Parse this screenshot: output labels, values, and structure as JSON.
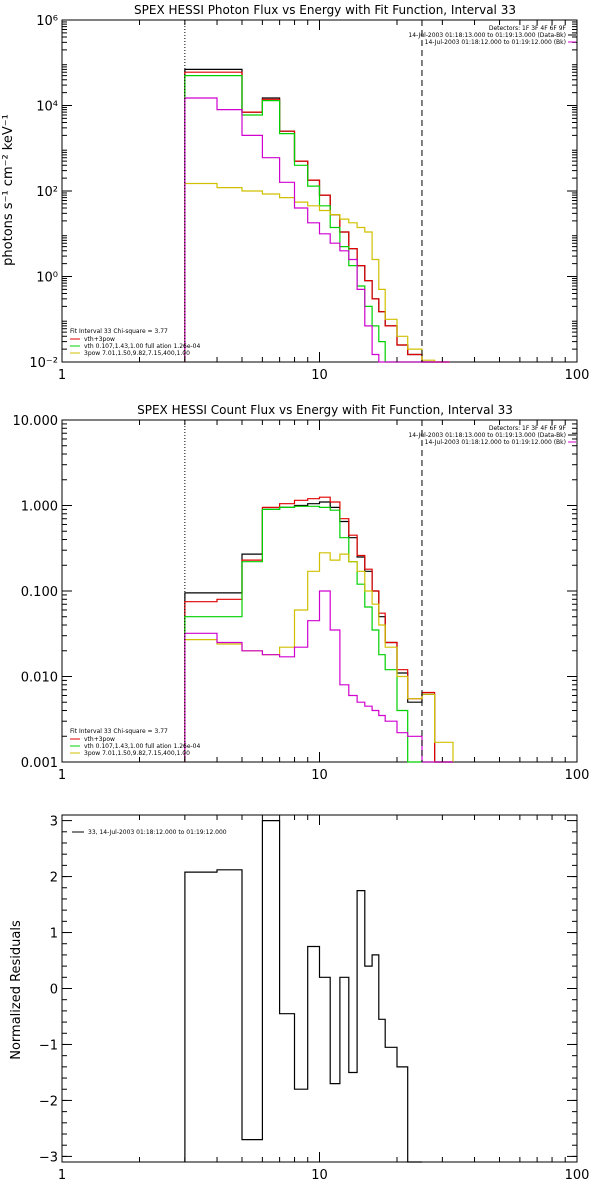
{
  "chart_data": [
    {
      "id": "photon",
      "type": "line",
      "title": "SPEX HESSI Photon Flux vs Energy with Fit Function, Interval 33",
      "xlabel": "",
      "ylabel": "photons s⁻¹ cm⁻² keV⁻¹",
      "xscale": "log",
      "yscale": "log",
      "xlim": [
        1,
        100
      ],
      "ylim": [
        0.01,
        1000000
      ],
      "xticks": [
        1,
        10,
        100
      ],
      "xticklabels": [
        "1",
        "10",
        "100"
      ],
      "yticks": [
        0.01,
        1,
        100,
        10000,
        1000000
      ],
      "yticklabels": [
        "10⁻²",
        "10⁰",
        "10²",
        "10⁴",
        "10⁶"
      ],
      "vlines": [
        {
          "x": 3,
          "style": "dotted"
        },
        {
          "x": 25,
          "style": "dashed"
        }
      ],
      "header_lines": [
        "Detectors: 1F 3F 4F 6F 9F",
        "14-Jul-2003 01:18:13.000 to 01:19:13.000 (Data-Bk)",
        "14-Jul-2003 01:18:12.000 to 01:19:12.000 (Bk)"
      ],
      "header_colors": [
        "",
        "#000000",
        "#d000d0"
      ],
      "legend_lines": [
        "Fit Interval 33   Chi-square = 3.77",
        "vth+3pow",
        "vth 0.107,1.43,1.00  full ation 1.26e-04",
        "3pow 7.01,1.50,9.82,7.15,400,1.00"
      ],
      "legend_colors": [
        "",
        "#e00000",
        "#00d000",
        "#d0c000"
      ],
      "edges": [
        3,
        4,
        5,
        6,
        7,
        8,
        9,
        10,
        11,
        12,
        13,
        14,
        15,
        16,
        17,
        18,
        20,
        22,
        25,
        28,
        32
      ],
      "series": [
        {
          "color": "#000000",
          "values": [
            70000,
            70000,
            7000,
            15000,
            2500,
            500,
            180,
            80,
            28,
            11,
            4.5,
            1.8,
            0.8,
            0.3,
            0.15,
            0.07,
            0.025,
            0.015,
            0.01,
            0.01
          ]
        },
        {
          "color": "#e00000",
          "values": [
            60000,
            60000,
            7000,
            14000,
            2500,
            500,
            180,
            80,
            28,
            11,
            4.5,
            1.8,
            0.8,
            0.3,
            0.15,
            0.07,
            0.025,
            0.015,
            0.01,
            0.01
          ]
        },
        {
          "color": "#00d000",
          "values": [
            50000,
            50000,
            6000,
            13000,
            2200,
            400,
            130,
            45,
            14,
            5,
            1.8,
            0.6,
            0.2,
            0.07,
            0.03,
            0.01,
            0.01,
            0.01,
            0.01,
            0.01
          ]
        },
        {
          "color": "#d0c000",
          "values": [
            150,
            120,
            100,
            85,
            70,
            55,
            45,
            35,
            28,
            22,
            18,
            14,
            11,
            2.5,
            0.5,
            0.1,
            0.04,
            0.02,
            0.011,
            0.01
          ]
        },
        {
          "color": "#d000d0",
          "values": [
            15000,
            8000,
            2000,
            600,
            160,
            40,
            18,
            10,
            6,
            4,
            2.5,
            0.5,
            0.07,
            0.015,
            0.01,
            0.01,
            0.01,
            0.01,
            0.01,
            0.01
          ]
        }
      ]
    },
    {
      "id": "count",
      "type": "line",
      "title": "SPEX HESSI Count Flux vs Energy with Fit Function, Interval 33",
      "xlabel": "",
      "ylabel": "",
      "xscale": "log",
      "yscale": "log",
      "xlim": [
        1,
        100
      ],
      "ylim": [
        0.001,
        10
      ],
      "xticks": [
        1,
        10,
        100
      ],
      "xticklabels": [
        "1",
        "10",
        "100"
      ],
      "yticks": [
        0.001,
        0.01,
        0.1,
        1,
        10
      ],
      "yticklabels": [
        "0.001",
        "0.010",
        "0.100",
        "1.000",
        "10.000"
      ],
      "vlines": [
        {
          "x": 3,
          "style": "dotted"
        },
        {
          "x": 25,
          "style": "dashed"
        }
      ],
      "header_lines": [
        "Detectors: 1F 3F 4F 6F 9F",
        "14-Jul-2003 01:18:13.000 to 01:19:13.000 (Data-Bk)",
        "14-Jul-2003 01:18:12.000 to 01:19:12.000 (Bk)"
      ],
      "header_colors": [
        "",
        "#000000",
        "#d000d0"
      ],
      "legend_lines": [
        "Fit Interval 33   Chi-square = 3.77",
        "vth+3pow",
        "vth 0.107,1.43,1.00  full ation 1.26e-04",
        "3pow 7.01,1.50,9.82,7.15,400,1.00"
      ],
      "legend_colors": [
        "",
        "#e00000",
        "#00d000",
        "#d0c000"
      ],
      "edges": [
        3,
        4,
        5,
        6,
        7,
        8,
        9,
        10,
        11,
        12,
        13,
        14,
        15,
        16,
        17,
        18,
        20,
        22,
        25,
        28,
        33
      ],
      "series": [
        {
          "color": "#000000",
          "values": [
            0.095,
            0.095,
            0.27,
            0.9,
            0.95,
            1.0,
            1.05,
            1.1,
            0.95,
            0.65,
            0.42,
            0.25,
            0.17,
            0.1,
            0.05,
            0.025,
            0.011,
            0.005,
            0.0062,
            0.001
          ]
        },
        {
          "color": "#e00000",
          "values": [
            0.075,
            0.08,
            0.23,
            0.95,
            1.05,
            1.15,
            1.2,
            1.25,
            1.1,
            0.7,
            0.45,
            0.26,
            0.18,
            0.1,
            0.055,
            0.025,
            0.012,
            0.0055,
            0.0065,
            0.001
          ]
        },
        {
          "color": "#00d000",
          "values": [
            0.05,
            0.05,
            0.22,
            0.9,
            0.95,
            0.98,
            0.98,
            0.95,
            0.88,
            0.42,
            0.22,
            0.12,
            0.065,
            0.035,
            0.018,
            0.012,
            0.004,
            0.001,
            0.001,
            0.001
          ]
        },
        {
          "color": "#d0c000",
          "values": [
            0.027,
            0.024,
            0.02,
            0.018,
            0.022,
            0.06,
            0.17,
            0.28,
            0.23,
            0.27,
            0.22,
            0.17,
            0.1,
            0.07,
            0.04,
            0.022,
            0.01,
            0.0055,
            0.0062,
            0.0017
          ]
        },
        {
          "color": "#d000d0",
          "values": [
            0.032,
            0.025,
            0.02,
            0.018,
            0.017,
            0.022,
            0.045,
            0.1,
            0.035,
            0.008,
            0.006,
            0.005,
            0.0045,
            0.004,
            0.0035,
            0.003,
            0.0022,
            0.002,
            0.001,
            0.001
          ]
        }
      ]
    },
    {
      "id": "resid",
      "type": "line",
      "title": "",
      "xlabel": "",
      "ylabel": "Normalized Residuals",
      "xscale": "log",
      "yscale": "linear",
      "xlim": [
        1,
        100
      ],
      "ylim": [
        -3.1,
        3.1
      ],
      "xticks": [
        1,
        10,
        100
      ],
      "xticklabels": [
        "1",
        "10",
        "100"
      ],
      "yticks": [
        -3,
        -2,
        -1,
        0,
        1,
        2,
        3
      ],
      "yticklabels": [
        "−3",
        "−2",
        "−1",
        "0",
        "1",
        "2",
        "3"
      ],
      "vlines": [],
      "header_lines": [],
      "header_colors": [],
      "legend_lines": [
        "33, 14-Jul-2003 01:18:12.000 to 01:19:12.000"
      ],
      "legend_colors": [
        "#000000"
      ],
      "edges": [
        3,
        4,
        5,
        6,
        7,
        8,
        9,
        10,
        11,
        12,
        13,
        14,
        15,
        16,
        17,
        18,
        20,
        22,
        25
      ],
      "series": [
        {
          "color": "#000000",
          "values": [
            2.08,
            2.12,
            -2.7,
            3.0,
            -0.45,
            -1.8,
            0.75,
            0.2,
            -1.7,
            0.2,
            -1.5,
            1.75,
            0.4,
            0.6,
            -0.55,
            -1.05,
            -1.4,
            -3.1
          ]
        }
      ]
    }
  ]
}
